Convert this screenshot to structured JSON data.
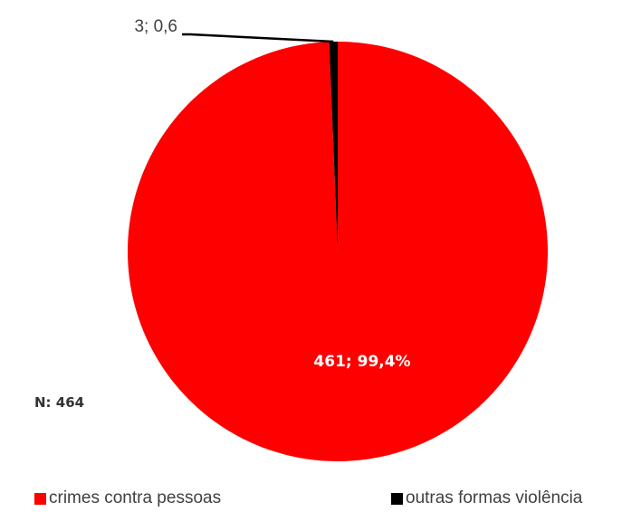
{
  "chart_data": {
    "type": "pie",
    "title": "",
    "total_label": "N: 464",
    "slices": [
      {
        "label": "crimes contra pessoas",
        "value": 461,
        "percent": "99,4%",
        "data_label": "461; 99,4%",
        "color": "#ff0000"
      },
      {
        "label": "outras formas violência",
        "value": 3,
        "percent": "0,6",
        "data_label": "3; 0,6",
        "color": "#000000"
      }
    ],
    "legend_position": "bottom"
  }
}
